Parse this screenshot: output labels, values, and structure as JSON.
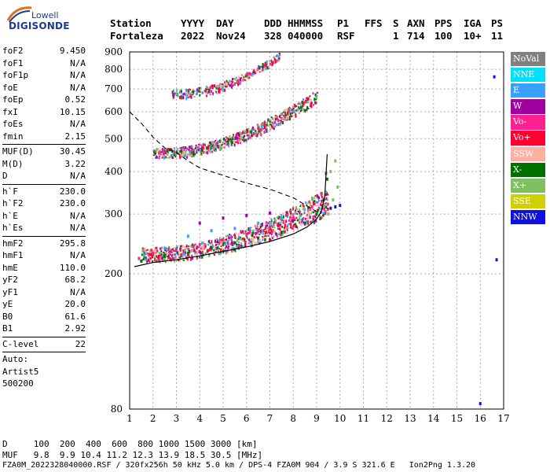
{
  "logo": {
    "brand": "Lowell",
    "product": "DIGISONDE"
  },
  "header": {
    "row1": [
      "Station",
      "YYYY",
      "DAY",
      "DDD",
      "HHMMSS",
      "P1",
      "FFS",
      "S",
      "AXN",
      "PPS",
      "IGA",
      "PS"
    ],
    "row2": [
      "Fortaleza",
      "2022",
      "Nov24",
      "328",
      "040000",
      "RSF",
      "",
      "1",
      "714",
      "100",
      "10+",
      "11"
    ]
  },
  "params": {
    "group1": [
      {
        "k": "foF2",
        "v": "9.450"
      },
      {
        "k": "foF1",
        "v": "N/A"
      },
      {
        "k": "foF1p",
        "v": "N/A"
      },
      {
        "k": "foE",
        "v": "N/A"
      },
      {
        "k": "foEp",
        "v": "0.52"
      },
      {
        "k": "fxI",
        "v": "10.15"
      },
      {
        "k": "foEs",
        "v": "N/A"
      },
      {
        "k": "fmin",
        "v": "2.15"
      }
    ],
    "group2": [
      {
        "k": "MUF(D)",
        "v": "30.45"
      },
      {
        "k": "M(D)",
        "v": "3.22"
      },
      {
        "k": "D",
        "v": "N/A"
      }
    ],
    "group3": [
      {
        "k": "h`F",
        "v": "230.0"
      },
      {
        "k": "h`F2",
        "v": "230.0"
      },
      {
        "k": "h`E",
        "v": "N/A"
      },
      {
        "k": "h`Es",
        "v": "N/A"
      }
    ],
    "group4": [
      {
        "k": "hmF2",
        "v": "295.8"
      },
      {
        "k": "hmF1",
        "v": "N/A"
      },
      {
        "k": "hmE",
        "v": "110.0"
      },
      {
        "k": "yF2",
        "v": "68.2"
      },
      {
        "k": "yF1",
        "v": "N/A"
      },
      {
        "k": "yE",
        "v": "20.0"
      },
      {
        "k": "B0",
        "v": "61.6"
      },
      {
        "k": "B1",
        "v": "2.92"
      }
    ],
    "clevel": {
      "k": "C-level",
      "v": "22"
    },
    "auto": [
      "Auto:",
      "Artist5",
      "500200"
    ]
  },
  "legend": [
    {
      "label": "NoVal",
      "bg": "#808080",
      "fg": "#ffffff"
    },
    {
      "label": "NNE",
      "bg": "#00e0ff",
      "fg": "#ffffff"
    },
    {
      "label": "E",
      "bg": "#3aa0ff",
      "fg": "#ffffff"
    },
    {
      "label": "W",
      "bg": "#a000a0",
      "fg": "#ffffff"
    },
    {
      "label": "Vo-",
      "bg": "#ff2090",
      "fg": "#ffffff"
    },
    {
      "label": "Vo+",
      "bg": "#ff0030",
      "fg": "#ffffff"
    },
    {
      "label": "SSW",
      "bg": "#ffb0a0",
      "fg": "#ffffff"
    },
    {
      "label": "X-",
      "bg": "#007000",
      "fg": "#ffffff"
    },
    {
      "label": "X+",
      "bg": "#80c060",
      "fg": "#ffffff"
    },
    {
      "label": "SSE",
      "bg": "#d0d000",
      "fg": "#ffffff"
    },
    {
      "label": "NNW",
      "bg": "#1010e0",
      "fg": "#ffffff"
    }
  ],
  "footer": {
    "line1": "D     100  200  400  600  800 1000 1500 3000 [km]",
    "line2": "MUF   9.8  9.9 10.4 11.2 12.3 13.9 18.5 30.5 [MHz]",
    "line3": "FZA0M_2022328040000.RSF / 320fx256h 50 kHz 5.0 km / DPS-4 FZA0M 904 / 3.9 S 321.6 E   Ion2Png 1.3.20"
  },
  "chart_data": {
    "type": "scatter",
    "xlim": [
      1,
      17
    ],
    "ylim": [
      80,
      900
    ],
    "y_scale": "log",
    "x_ticks": [
      1,
      2,
      3,
      4,
      5,
      6,
      7,
      8,
      9,
      10,
      11,
      12,
      13,
      14,
      15,
      16,
      17
    ],
    "y_ticks": [
      80,
      200,
      300,
      400,
      500,
      600,
      700,
      800,
      900
    ],
    "grid": true,
    "series": [
      {
        "name": "X-",
        "color": "#007000",
        "x": [
          1.5,
          2.5,
          3.5,
          4.5,
          5.5,
          6.5,
          7.5,
          8.5,
          9.0,
          9.3,
          9.45
        ],
        "y": [
          218,
          225,
          230,
          238,
          247,
          255,
          265,
          282,
          300,
          330,
          380
        ]
      },
      {
        "name": "Vo-",
        "color": "#ff2090",
        "x": [
          1.4,
          2.0,
          3.0,
          4.0,
          5.0,
          6.0,
          7.0,
          8.0,
          8.8,
          9.2,
          9.4
        ],
        "y": [
          222,
          230,
          236,
          244,
          252,
          262,
          274,
          292,
          315,
          345,
          395
        ]
      },
      {
        "name": "E",
        "color": "#3aa0ff",
        "x": [
          1.6,
          2.5,
          3.5,
          4.5,
          5.5,
          6.5,
          7.5
        ],
        "y": [
          228,
          238,
          258,
          268,
          272,
          282,
          292
        ]
      },
      {
        "name": "W",
        "color": "#a000a0",
        "x": [
          4.0,
          5.0,
          6.0,
          7.0
        ],
        "y": [
          282,
          292,
          297,
          302
        ]
      },
      {
        "name": "X+",
        "color": "#80c060",
        "x": [
          9.5,
          9.7,
          9.9,
          9.6,
          9.8
        ],
        "y": [
          300,
          330,
          360,
          400,
          430
        ]
      },
      {
        "name": "NNW",
        "color": "#1010e0",
        "x": [
          9.6,
          9.8,
          10.0,
          16.0,
          16.6,
          16.7
        ],
        "y": [
          312,
          315,
          318,
          83,
          760,
          220
        ]
      }
    ],
    "profile_curve": {
      "x": [
        1.2,
        2,
        3,
        4,
        5,
        6,
        7,
        8,
        8.6,
        9.0,
        9.2,
        9.35,
        9.45
      ],
      "y": [
        210,
        216,
        220,
        226,
        233,
        240,
        249,
        262,
        275,
        290,
        305,
        340,
        450
      ]
    },
    "muf_curve": {
      "x": [
        1.0,
        1.5,
        2.0,
        2.5,
        3.0,
        3.5,
        4.0,
        5.0,
        6.0,
        7.0,
        8.0,
        9.0
      ],
      "y": [
        600,
        555,
        505,
        470,
        455,
        430,
        410,
        390,
        370,
        355,
        335,
        305
      ]
    },
    "bands": [
      {
        "x0": 1.5,
        "x1": 9.5,
        "ymin_start": 218,
        "ymin_end": 300,
        "ymax_start": 240,
        "ymax_end": 360
      },
      {
        "x0": 2.0,
        "x1": 9.0,
        "ymin_start": 440,
        "ymin_end": 640,
        "ymax_start": 470,
        "ymax_end": 700
      },
      {
        "x0": 2.8,
        "x1": 7.4,
        "ymin_start": 660,
        "ymin_end": 860,
        "ymax_start": 700,
        "ymax_end": 900
      }
    ]
  }
}
